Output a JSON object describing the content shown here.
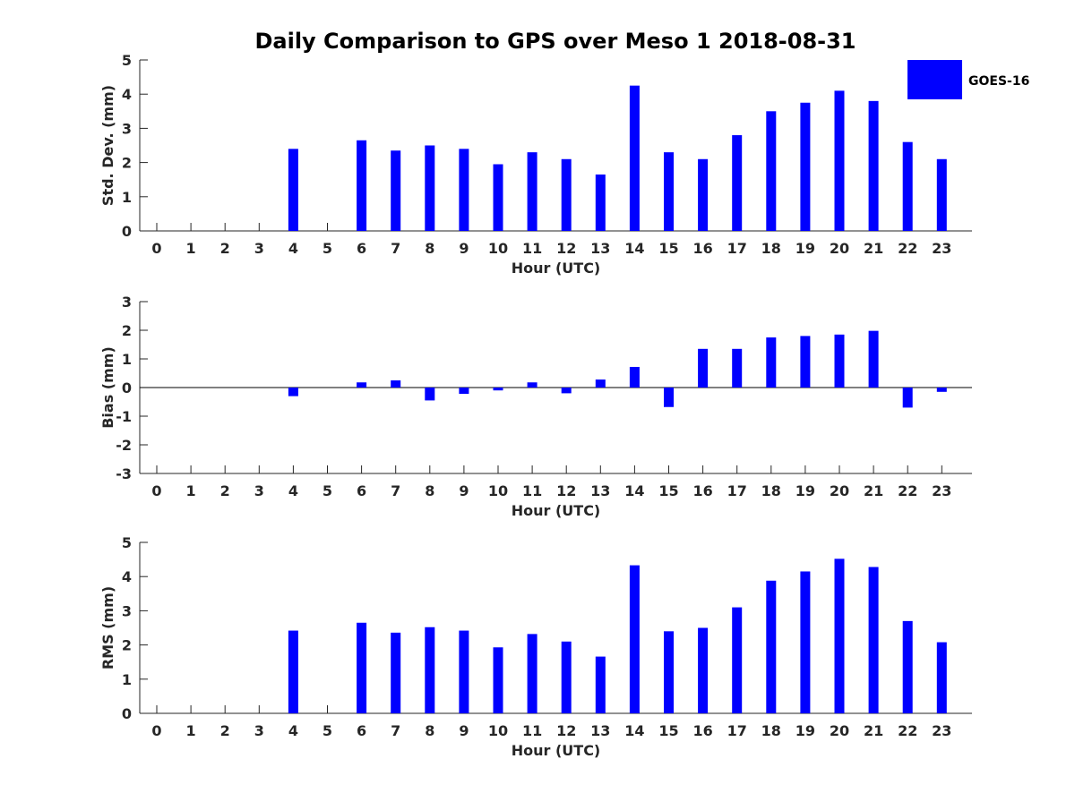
{
  "chart_data": {
    "type": "bar",
    "title": "Daily Comparison to GPS over Meso 1 2018-08-31",
    "legend": {
      "label": "GOES-16",
      "color": "#0000ff",
      "placement": "top-right"
    },
    "categories": [
      "0",
      "1",
      "2",
      "3",
      "4",
      "5",
      "6",
      "7",
      "8",
      "9",
      "10",
      "11",
      "12",
      "13",
      "14",
      "15",
      "16",
      "17",
      "18",
      "19",
      "20",
      "21",
      "22",
      "23"
    ],
    "panels": [
      {
        "id": "stddev",
        "ylabel": "Std. Dev. (mm)",
        "xlabel": "Hour (UTC)",
        "ylim": [
          0,
          5
        ],
        "yticks": [
          "0",
          "1",
          "2",
          "3",
          "4",
          "5"
        ],
        "series": [
          {
            "name": "GOES-16",
            "values": [
              null,
              null,
              null,
              null,
              2.4,
              null,
              2.65,
              2.35,
              2.5,
              2.4,
              1.95,
              2.3,
              2.1,
              1.65,
              4.25,
              2.3,
              2.1,
              2.8,
              3.5,
              3.75,
              4.1,
              3.8,
              2.6,
              2.1
            ]
          }
        ]
      },
      {
        "id": "bias",
        "ylabel": "Bias (mm)",
        "xlabel": "Hour (UTC)",
        "ylim": [
          -3,
          3
        ],
        "yticks": [
          "-3",
          "-2",
          "-1",
          "0",
          "1",
          "2",
          "3"
        ],
        "series": [
          {
            "name": "GOES-16",
            "values": [
              null,
              null,
              null,
              null,
              -0.3,
              null,
              0.18,
              0.25,
              -0.45,
              -0.22,
              -0.1,
              0.18,
              -0.2,
              0.28,
              0.72,
              -0.68,
              1.35,
              1.35,
              1.75,
              1.8,
              1.85,
              1.98,
              -0.7,
              -0.15
            ]
          }
        ]
      },
      {
        "id": "rms",
        "ylabel": "RMS (mm)",
        "xlabel": "Hour (UTC)",
        "ylim": [
          0,
          5
        ],
        "yticks": [
          "0",
          "1",
          "2",
          "3",
          "4",
          "5"
        ],
        "series": [
          {
            "name": "GOES-16",
            "values": [
              null,
              null,
              null,
              null,
              2.42,
              null,
              2.65,
              2.36,
              2.52,
              2.42,
              1.93,
              2.32,
              2.1,
              1.66,
              4.33,
              2.4,
              2.5,
              3.1,
              3.88,
              4.15,
              4.52,
              4.28,
              2.7,
              2.08
            ]
          }
        ]
      }
    ]
  }
}
